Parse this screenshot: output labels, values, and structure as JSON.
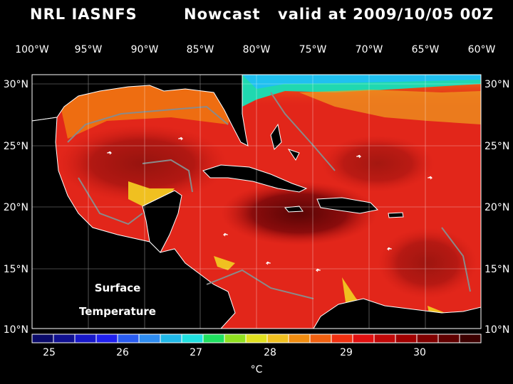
{
  "header": {
    "source": "NRL IASNFS",
    "product": "Nowcast",
    "valid": "valid at 2009/10/05 00Z"
  },
  "axes": {
    "top_lon_labels": [
      "100°W",
      "95°W",
      "90°W",
      "85°W",
      "80°W",
      "75°W",
      "70°W",
      "65°W",
      "60°W"
    ],
    "lat_labels": [
      "30°N",
      "25°N",
      "20°N",
      "15°N",
      "10°N"
    ]
  },
  "overlay": {
    "line1": "Surface",
    "line2": "Temperature"
  },
  "colorbar": {
    "colors": [
      "#0a0a6a",
      "#101090",
      "#1818c8",
      "#2020ee",
      "#2a5cf0",
      "#2e8cf0",
      "#20b8e8",
      "#20e0e0",
      "#20e060",
      "#90e020",
      "#e0e020",
      "#f0c020",
      "#f08c10",
      "#f06010",
      "#f03010",
      "#e01010",
      "#c00808",
      "#a00000",
      "#800000",
      "#600000",
      "#3c0000"
    ],
    "tick_labels": [
      "25",
      "26",
      "27",
      "28",
      "29",
      "30"
    ],
    "unit": "°C"
  },
  "colors": {
    "ocean_base": "#e8281a",
    "warm_core": "#7a0a0a",
    "cool_north": "#f08c10",
    "land": "#000000",
    "coast": "#ffffff",
    "bathymetry": "#8a8a8a"
  }
}
